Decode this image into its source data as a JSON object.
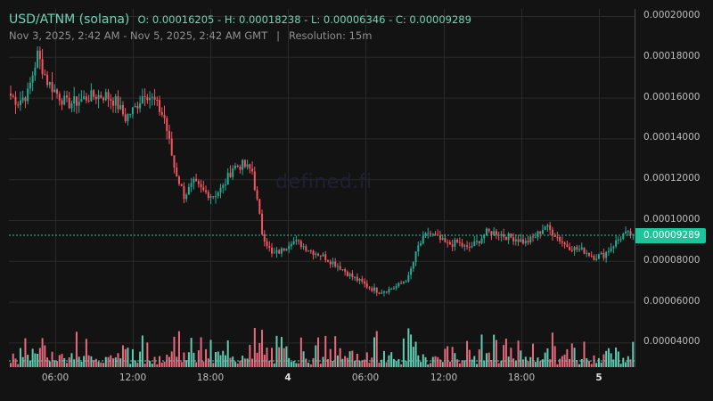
{
  "header": {
    "symbol": "USD/ATNM (solana)",
    "ohlc": "O: 0.00016205 - H: 0.00018238 - L: 0.00006346 - C: 0.00009289",
    "range": "Nov 3, 2025, 2:42 AM - Nov 5, 2025, 2:42 AM GMT",
    "separator": "|",
    "resolution": "Resolution: 15m"
  },
  "watermark": "defined.fi",
  "price_axis": {
    "labels": [
      "0.00020000",
      "0.00018000",
      "0.00016000",
      "0.00014000",
      "0.00012000",
      "0.00010000",
      "0.00008000",
      "0.00006000",
      "0.00004000"
    ],
    "current_price_label": "0.00009289"
  },
  "time_axis": {
    "labels": [
      "06:00",
      "12:00",
      "18:00",
      "4",
      "06:00",
      "12:00",
      "18:00",
      "5"
    ]
  },
  "colors": {
    "up": "#22ab94",
    "down": "#f7525f",
    "vol_up": "#5fcbb1",
    "vol_down": "#e8697d",
    "current_price": "#1ec49a",
    "grid": "#2a2a2a",
    "background": "#131313"
  },
  "chart_data": {
    "type": "candlestick",
    "title": "USD/ATNM (solana)",
    "subtitle": "Nov 3, 2025, 2:42 AM - Nov 5, 2025, 2:42 AM GMT | Resolution: 15m",
    "resolution": "15m",
    "open": 0.00016205,
    "high": 0.00018238,
    "low": 6.346e-05,
    "close": 9.289e-05,
    "current_price": 9.289e-05,
    "ylim": [
      3e-05,
      0.0002
    ],
    "yticks": [
      4e-05,
      6e-05,
      8e-05,
      0.0001,
      0.00012,
      0.00014,
      0.00016,
      0.00018,
      0.0002
    ],
    "xticks": [
      "06:00",
      "12:00",
      "18:00",
      "4",
      "06:00",
      "12:00",
      "18:00",
      "5"
    ],
    "grid": true,
    "volume_pane": true,
    "approx_closes_by_hour": [
      0.000158,
      0.000162,
      0.000181,
      0.000168,
      0.000162,
      0.000157,
      0.000158,
      0.00016,
      0.000161,
      0.000161,
      0.000158,
      0.00015,
      0.000155,
      0.000163,
      0.000158,
      0.00015,
      0.000126,
      0.000112,
      0.000118,
      0.000114,
      0.000112,
      0.000116,
      0.000126,
      0.000127,
      0.000124,
      9.4e-05,
      8.3e-05,
      8.5e-05,
      9e-05,
      8.8e-05,
      8.5e-05,
      8.3e-05,
      8e-05,
      7.7e-05,
      7.3e-05,
      7e-05,
      6.7e-05,
      6.5e-05,
      6.6e-05,
      6.8e-05,
      7.2e-05,
      8.7e-05,
      9.4e-05,
      9.1e-05,
      8.8e-05,
      8.9e-05,
      8.6e-05,
      8.9e-05,
      9.4e-05,
      9.4e-05,
      9.2e-05,
      9.1e-05,
      8.9e-05,
      9.2e-05,
      9.7e-05,
      9.3e-05,
      8.8e-05,
      8.6e-05,
      8.5e-05,
      8.2e-05,
      8.3e-05,
      8.8e-05,
      9.3e-05,
      9.29e-05
    ]
  }
}
